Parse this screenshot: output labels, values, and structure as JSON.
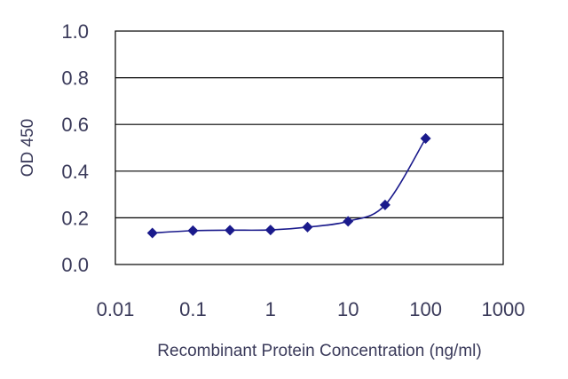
{
  "chart_data": {
    "type": "line",
    "xscale": "log",
    "xlabel": "Recombinant Protein Concentration  (ng/ml)",
    "ylabel": "OD 450",
    "xlim": [
      0.01,
      1000
    ],
    "ylim": [
      0,
      1.0
    ],
    "x_ticks": [
      "0.01",
      "0.1",
      "1",
      "10",
      "100",
      "1000"
    ],
    "y_ticks": [
      "0.0",
      "0.2",
      "0.4",
      "0.6",
      "0.8",
      "1.0"
    ],
    "grid": "horizontal",
    "colors": {
      "series": "#1a1a8c",
      "grid": "#000000",
      "frame": "#000000"
    },
    "series": [
      {
        "x": [
          0.03,
          0.1,
          0.3,
          1,
          3,
          10,
          30,
          100
        ],
        "y": [
          0.135,
          0.145,
          0.147,
          0.148,
          0.16,
          0.185,
          0.255,
          0.54
        ]
      }
    ]
  }
}
